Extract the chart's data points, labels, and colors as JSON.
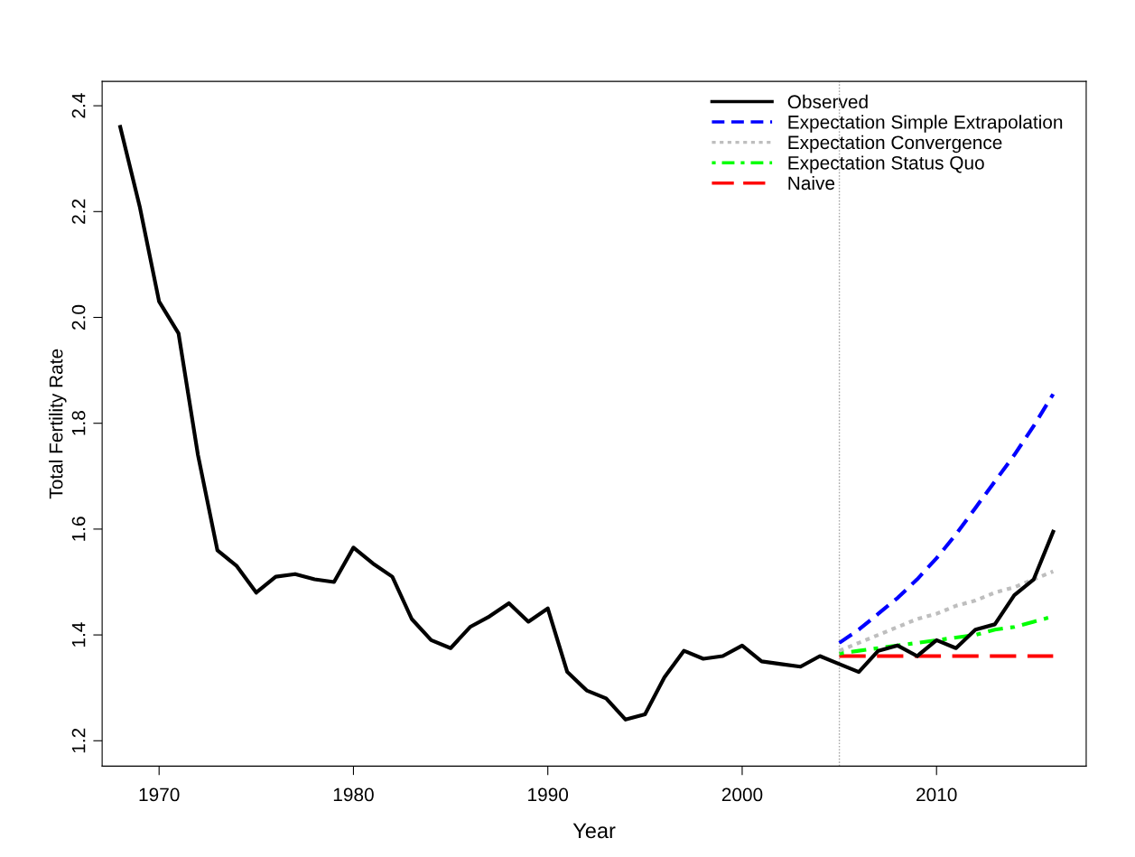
{
  "chart_data": {
    "type": "line",
    "xlabel": "Year",
    "ylabel": "Total Fertility Rate",
    "xlim": [
      1967.07,
      2017.7
    ],
    "ylim": [
      1.152,
      2.446
    ],
    "xticks": [
      1970,
      1980,
      1990,
      2000,
      2010
    ],
    "yticks": [
      1.2,
      1.4,
      1.6,
      1.8,
      {
        "value": 2.0,
        "label": "2.0"
      },
      2.2,
      2.4
    ],
    "grid": false,
    "legend": "top right",
    "marker": "none",
    "ref_lines": [
      {
        "axis": "x",
        "value": 2005,
        "label": null,
        "color": "#aaaaaa",
        "line_style": "dotted"
      }
    ],
    "series": [
      {
        "name": "Observed",
        "color": "#000000",
        "line_style": "solid",
        "x": [
          1968,
          1969,
          1970,
          1971,
          1972,
          1973,
          1974,
          1975,
          1976,
          1977,
          1978,
          1979,
          1980,
          1981,
          1982,
          1983,
          1984,
          1985,
          1986,
          1987,
          1988,
          1989,
          1990,
          1991,
          1992,
          1993,
          1994,
          1995,
          1996,
          1997,
          1998,
          1999,
          2000,
          2001,
          2002,
          2003,
          2004,
          2005,
          2006,
          2007,
          2008,
          2009,
          2010,
          2011,
          2012,
          2013,
          2014,
          2015,
          2016
        ],
        "values": [
          2.36,
          2.21,
          2.03,
          1.97,
          1.74,
          1.56,
          1.53,
          1.48,
          1.51,
          1.515,
          1.505,
          1.5,
          1.565,
          1.535,
          1.51,
          1.43,
          1.39,
          1.375,
          1.415,
          1.435,
          1.46,
          1.425,
          1.45,
          1.33,
          1.295,
          1.28,
          1.24,
          1.25,
          1.32,
          1.37,
          1.355,
          1.36,
          1.38,
          1.35,
          1.345,
          1.34,
          1.36,
          1.345,
          1.33,
          1.37,
          1.38,
          1.36,
          1.39,
          1.375,
          1.41,
          1.42,
          1.475,
          1.505,
          1.595
        ]
      },
      {
        "name": "Expectation Simple Extrapolation",
        "color": "#0000ff",
        "line_style": "dashed",
        "x": [
          2005,
          2006,
          2007,
          2008,
          2009,
          2010,
          2011,
          2012,
          2013,
          2014,
          2015,
          2016
        ],
        "values": [
          1.385,
          1.41,
          1.44,
          1.47,
          1.505,
          1.545,
          1.59,
          1.64,
          1.69,
          1.74,
          1.795,
          1.855
        ]
      },
      {
        "name": "Expectation Convergence",
        "color": "#bebebe",
        "line_style": "dotted",
        "x": [
          2005,
          2006,
          2007,
          2008,
          2009,
          2010,
          2011,
          2012,
          2013,
          2014,
          2015,
          2016
        ],
        "values": [
          1.37,
          1.385,
          1.4,
          1.415,
          1.43,
          1.44,
          1.455,
          1.465,
          1.48,
          1.49,
          1.505,
          1.52
        ]
      },
      {
        "name": "Expectation Status Quo",
        "color": "#00ff00",
        "line_style": "dashdot",
        "x": [
          2005,
          2006,
          2007,
          2008,
          2009,
          2010,
          2011,
          2012,
          2013,
          2014,
          2015,
          2016
        ],
        "values": [
          1.365,
          1.37,
          1.375,
          1.38,
          1.385,
          1.39,
          1.395,
          1.4,
          1.41,
          1.415,
          1.425,
          1.435
        ]
      },
      {
        "name": "Naive",
        "color": "#ff0000",
        "line_style": "longdash",
        "x": [
          2005,
          2006,
          2007,
          2008,
          2009,
          2010,
          2011,
          2012,
          2013,
          2014,
          2015,
          2016
        ],
        "values": [
          1.36,
          1.36,
          1.36,
          1.36,
          1.36,
          1.36,
          1.36,
          1.36,
          1.36,
          1.36,
          1.36,
          1.36
        ]
      }
    ]
  }
}
